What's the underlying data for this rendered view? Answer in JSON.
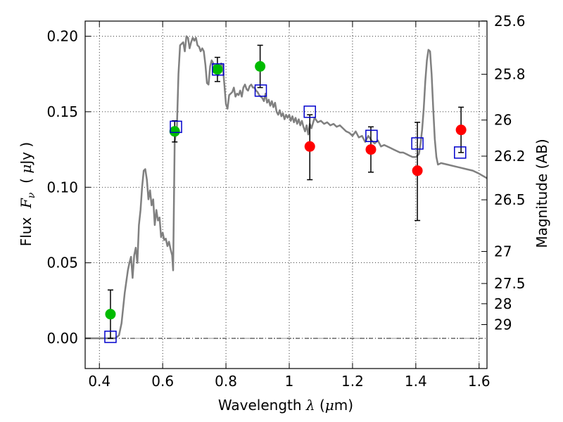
{
  "chart_data": {
    "type": "scatter",
    "xlabel": {
      "text": "Wavelength",
      "symbol": "λ",
      "unit_open": "(",
      "unit_mu": "μ",
      "unit_rest": "m)"
    },
    "ylabel": {
      "text": "Flux",
      "symbol": "F",
      "subscript": "ν",
      "unit_open": "(",
      "unit_mu": "μ",
      "unit_rest": "Jy )"
    },
    "y2label": "Magnitude (AB)",
    "xlim": [
      0.355,
      1.625
    ],
    "ylim": [
      -0.02,
      0.21
    ],
    "xticks": [
      0.4,
      0.6,
      0.8,
      1.0,
      1.2,
      1.4,
      1.6
    ],
    "xtick_labels": [
      "0.4",
      "0.6",
      "0.8",
      "1",
      "1.2",
      "1.4",
      "1.6"
    ],
    "yticks": [
      0.0,
      0.05,
      0.1,
      0.15,
      0.2
    ],
    "ytick_labels": [
      "0.00",
      "0.05",
      "0.10",
      "0.15",
      "0.20"
    ],
    "y2ticks": [
      {
        "label": "25.6",
        "flux": 0.2101
      },
      {
        "label": "25.8",
        "flux": 0.1748
      },
      {
        "label": "26",
        "flux": 0.1445
      },
      {
        "label": "26.2",
        "flux": 0.1206
      },
      {
        "label": "26.5",
        "flux": 0.0917
      },
      {
        "label": "27",
        "flux": 0.0575
      },
      {
        "label": "27.5",
        "flux": 0.0363
      },
      {
        "label": "28",
        "flux": 0.0229
      },
      {
        "label": "29",
        "flux": 0.0091
      }
    ],
    "grid": true,
    "zero_line": true,
    "series": [
      {
        "kind": "line",
        "color": "#808080",
        "points": [
          [
            0.355,
            0.0
          ],
          [
            0.45,
            0.0
          ],
          [
            0.462,
            0.002
          ],
          [
            0.47,
            0.01
          ],
          [
            0.48,
            0.03
          ],
          [
            0.49,
            0.045
          ],
          [
            0.495,
            0.05
          ],
          [
            0.5,
            0.054
          ],
          [
            0.505,
            0.04
          ],
          [
            0.51,
            0.055
          ],
          [
            0.515,
            0.06
          ],
          [
            0.52,
            0.05
          ],
          [
            0.525,
            0.075
          ],
          [
            0.53,
            0.085
          ],
          [
            0.535,
            0.1
          ],
          [
            0.54,
            0.111
          ],
          [
            0.545,
            0.112
          ],
          [
            0.55,
            0.105
          ],
          [
            0.555,
            0.092
          ],
          [
            0.56,
            0.098
          ],
          [
            0.565,
            0.088
          ],
          [
            0.57,
            0.092
          ],
          [
            0.575,
            0.075
          ],
          [
            0.58,
            0.085
          ],
          [
            0.585,
            0.078
          ],
          [
            0.59,
            0.08
          ],
          [
            0.595,
            0.067
          ],
          [
            0.6,
            0.07
          ],
          [
            0.605,
            0.065
          ],
          [
            0.61,
            0.066
          ],
          [
            0.615,
            0.061
          ],
          [
            0.62,
            0.064
          ],
          [
            0.625,
            0.059
          ],
          [
            0.63,
            0.055
          ],
          [
            0.633,
            0.045
          ],
          [
            0.638,
            0.13
          ],
          [
            0.645,
            0.14
          ],
          [
            0.65,
            0.175
          ],
          [
            0.655,
            0.194
          ],
          [
            0.66,
            0.195
          ],
          [
            0.665,
            0.196
          ],
          [
            0.67,
            0.19
          ],
          [
            0.675,
            0.2
          ],
          [
            0.68,
            0.199
          ],
          [
            0.685,
            0.192
          ],
          [
            0.69,
            0.196
          ],
          [
            0.695,
            0.199
          ],
          [
            0.7,
            0.197
          ],
          [
            0.705,
            0.199
          ],
          [
            0.71,
            0.194
          ],
          [
            0.715,
            0.193
          ],
          [
            0.72,
            0.19
          ],
          [
            0.725,
            0.192
          ],
          [
            0.73,
            0.19
          ],
          [
            0.735,
            0.181
          ],
          [
            0.74,
            0.169
          ],
          [
            0.745,
            0.168
          ],
          [
            0.75,
            0.18
          ],
          [
            0.755,
            0.184
          ],
          [
            0.76,
            0.182
          ],
          [
            0.765,
            0.18
          ],
          [
            0.77,
            0.177
          ],
          [
            0.775,
            0.174
          ],
          [
            0.78,
            0.179
          ],
          [
            0.785,
            0.182
          ],
          [
            0.79,
            0.18
          ],
          [
            0.795,
            0.168
          ],
          [
            0.8,
            0.155
          ],
          [
            0.805,
            0.152
          ],
          [
            0.81,
            0.161
          ],
          [
            0.815,
            0.162
          ],
          [
            0.82,
            0.163
          ],
          [
            0.825,
            0.166
          ],
          [
            0.83,
            0.16
          ],
          [
            0.835,
            0.162
          ],
          [
            0.84,
            0.161
          ],
          [
            0.845,
            0.164
          ],
          [
            0.85,
            0.16
          ],
          [
            0.855,
            0.166
          ],
          [
            0.86,
            0.168
          ],
          [
            0.865,
            0.165
          ],
          [
            0.87,
            0.164
          ],
          [
            0.875,
            0.167
          ],
          [
            0.88,
            0.168
          ],
          [
            0.885,
            0.166
          ],
          [
            0.89,
            0.166
          ],
          [
            0.895,
            0.164
          ],
          [
            0.9,
            0.163
          ],
          [
            0.905,
            0.161
          ],
          [
            0.91,
            0.16
          ],
          [
            0.915,
            0.159
          ],
          [
            0.92,
            0.157
          ],
          [
            0.925,
            0.162
          ],
          [
            0.93,
            0.156
          ],
          [
            0.935,
            0.158
          ],
          [
            0.94,
            0.154
          ],
          [
            0.945,
            0.157
          ],
          [
            0.95,
            0.153
          ],
          [
            0.955,
            0.156
          ],
          [
            0.96,
            0.15
          ],
          [
            0.965,
            0.148
          ],
          [
            0.97,
            0.151
          ],
          [
            0.975,
            0.147
          ],
          [
            0.98,
            0.149
          ],
          [
            0.985,
            0.145
          ],
          [
            0.99,
            0.148
          ],
          [
            0.995,
            0.146
          ],
          [
            1.0,
            0.148
          ],
          [
            1.005,
            0.144
          ],
          [
            1.01,
            0.147
          ],
          [
            1.015,
            0.143
          ],
          [
            1.02,
            0.146
          ],
          [
            1.025,
            0.142
          ],
          [
            1.03,
            0.145
          ],
          [
            1.035,
            0.141
          ],
          [
            1.04,
            0.144
          ],
          [
            1.045,
            0.14
          ],
          [
            1.05,
            0.137
          ],
          [
            1.055,
            0.141
          ],
          [
            1.06,
            0.135
          ],
          [
            1.065,
            0.142
          ],
          [
            1.07,
            0.139
          ],
          [
            1.08,
            0.146
          ],
          [
            1.09,
            0.143
          ],
          [
            1.1,
            0.144
          ],
          [
            1.11,
            0.142
          ],
          [
            1.12,
            0.143
          ],
          [
            1.13,
            0.141
          ],
          [
            1.14,
            0.142
          ],
          [
            1.15,
            0.14
          ],
          [
            1.16,
            0.141
          ],
          [
            1.17,
            0.139
          ],
          [
            1.18,
            0.137
          ],
          [
            1.19,
            0.136
          ],
          [
            1.2,
            0.134
          ],
          [
            1.21,
            0.137
          ],
          [
            1.22,
            0.133
          ],
          [
            1.23,
            0.134
          ],
          [
            1.24,
            0.13
          ],
          [
            1.25,
            0.134
          ],
          [
            1.26,
            0.131
          ],
          [
            1.27,
            0.129
          ],
          [
            1.28,
            0.131
          ],
          [
            1.29,
            0.127
          ],
          [
            1.3,
            0.128
          ],
          [
            1.31,
            0.127
          ],
          [
            1.32,
            0.126
          ],
          [
            1.33,
            0.125
          ],
          [
            1.34,
            0.124
          ],
          [
            1.35,
            0.123
          ],
          [
            1.36,
            0.123
          ],
          [
            1.37,
            0.122
          ],
          [
            1.38,
            0.121
          ],
          [
            1.39,
            0.12
          ],
          [
            1.4,
            0.12
          ],
          [
            1.41,
            0.122
          ],
          [
            1.415,
            0.129
          ],
          [
            1.42,
            0.138
          ],
          [
            1.425,
            0.152
          ],
          [
            1.43,
            0.17
          ],
          [
            1.435,
            0.184
          ],
          [
            1.44,
            0.191
          ],
          [
            1.445,
            0.19
          ],
          [
            1.45,
            0.175
          ],
          [
            1.455,
            0.152
          ],
          [
            1.46,
            0.132
          ],
          [
            1.465,
            0.12
          ],
          [
            1.47,
            0.115
          ],
          [
            1.48,
            0.116
          ],
          [
            1.5,
            0.115
          ],
          [
            1.52,
            0.114
          ],
          [
            1.54,
            0.113
          ],
          [
            1.56,
            0.112
          ],
          [
            1.58,
            0.111
          ],
          [
            1.6,
            0.109
          ],
          [
            1.625,
            0.106
          ]
        ]
      },
      {
        "kind": "errorbar",
        "marker": "circle",
        "color": "#00bb00",
        "points": [
          {
            "x": 0.435,
            "y": 0.016,
            "lo": 0.0,
            "hi": 0.032
          },
          {
            "x": 0.638,
            "y": 0.137,
            "lo": 0.13,
            "hi": 0.144
          },
          {
            "x": 0.773,
            "y": 0.178,
            "lo": 0.17,
            "hi": 0.186
          },
          {
            "x": 0.908,
            "y": 0.18,
            "lo": 0.166,
            "hi": 0.194
          }
        ]
      },
      {
        "kind": "errorbar",
        "marker": "circle",
        "color": "#ff0000",
        "points": [
          {
            "x": 1.065,
            "y": 0.127,
            "lo": 0.105,
            "hi": 0.148
          },
          {
            "x": 1.258,
            "y": 0.125,
            "lo": 0.11,
            "hi": 0.14
          },
          {
            "x": 1.405,
            "y": 0.111,
            "lo": 0.078,
            "hi": 0.143
          },
          {
            "x": 1.543,
            "y": 0.138,
            "lo": 0.123,
            "hi": 0.153
          }
        ]
      },
      {
        "kind": "scatter",
        "marker": "square-open",
        "color": "#0000cc",
        "points": [
          [
            0.435,
            0.001
          ],
          [
            0.642,
            0.14
          ],
          [
            0.775,
            0.178
          ],
          [
            0.91,
            0.164
          ],
          [
            1.065,
            0.15
          ],
          [
            1.26,
            0.134
          ],
          [
            1.405,
            0.129
          ],
          [
            1.54,
            0.123
          ]
        ]
      }
    ]
  }
}
